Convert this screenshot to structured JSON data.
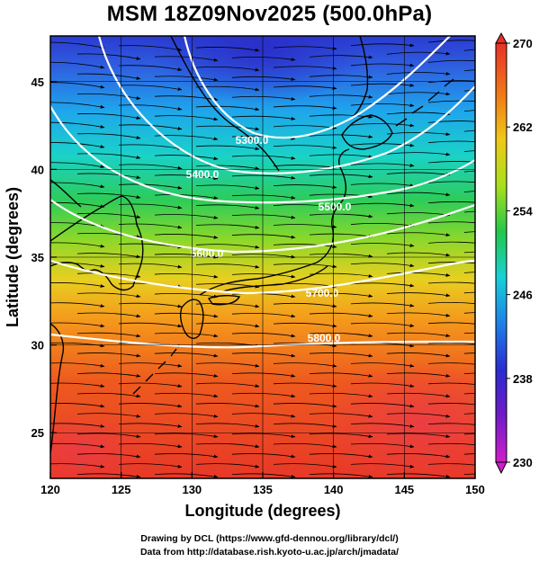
{
  "title": "MSM 18Z09Nov2025 (500.0hPa)",
  "x_axis": {
    "label": "Longitude (degrees)",
    "ticks": [
      "120",
      "125",
      "130",
      "135",
      "140",
      "145",
      "150"
    ],
    "range": [
      120,
      150
    ]
  },
  "y_axis": {
    "label": "Latitude  (degrees)",
    "ticks": [
      "25",
      "30",
      "35",
      "40",
      "45"
    ],
    "range": [
      22.4,
      47.6
    ]
  },
  "colorbar": {
    "ticks": [
      "230",
      "238",
      "246",
      "254",
      "262",
      "270"
    ],
    "range": [
      230,
      270
    ],
    "colors": [
      "#d01ec8",
      "#3a1cd0",
      "#1e8fe8",
      "#18d8d8",
      "#22c83c",
      "#a8e01c",
      "#f0c818",
      "#f07818",
      "#e83020",
      "#e83050"
    ]
  },
  "contours": [
    {
      "label": "5300.0"
    },
    {
      "label": "5400.0"
    },
    {
      "label": "5500.0"
    },
    {
      "label": "5600.0"
    },
    {
      "label": "5700.0"
    },
    {
      "label": "5800.0"
    }
  ],
  "footer": {
    "line1": "Drawing by DCL (https://www.gfd-dennou.org/library/dcl/)",
    "line2": "Data from http://database.rish.kyoto-u.ac.jp/arch/jmadata/"
  }
}
